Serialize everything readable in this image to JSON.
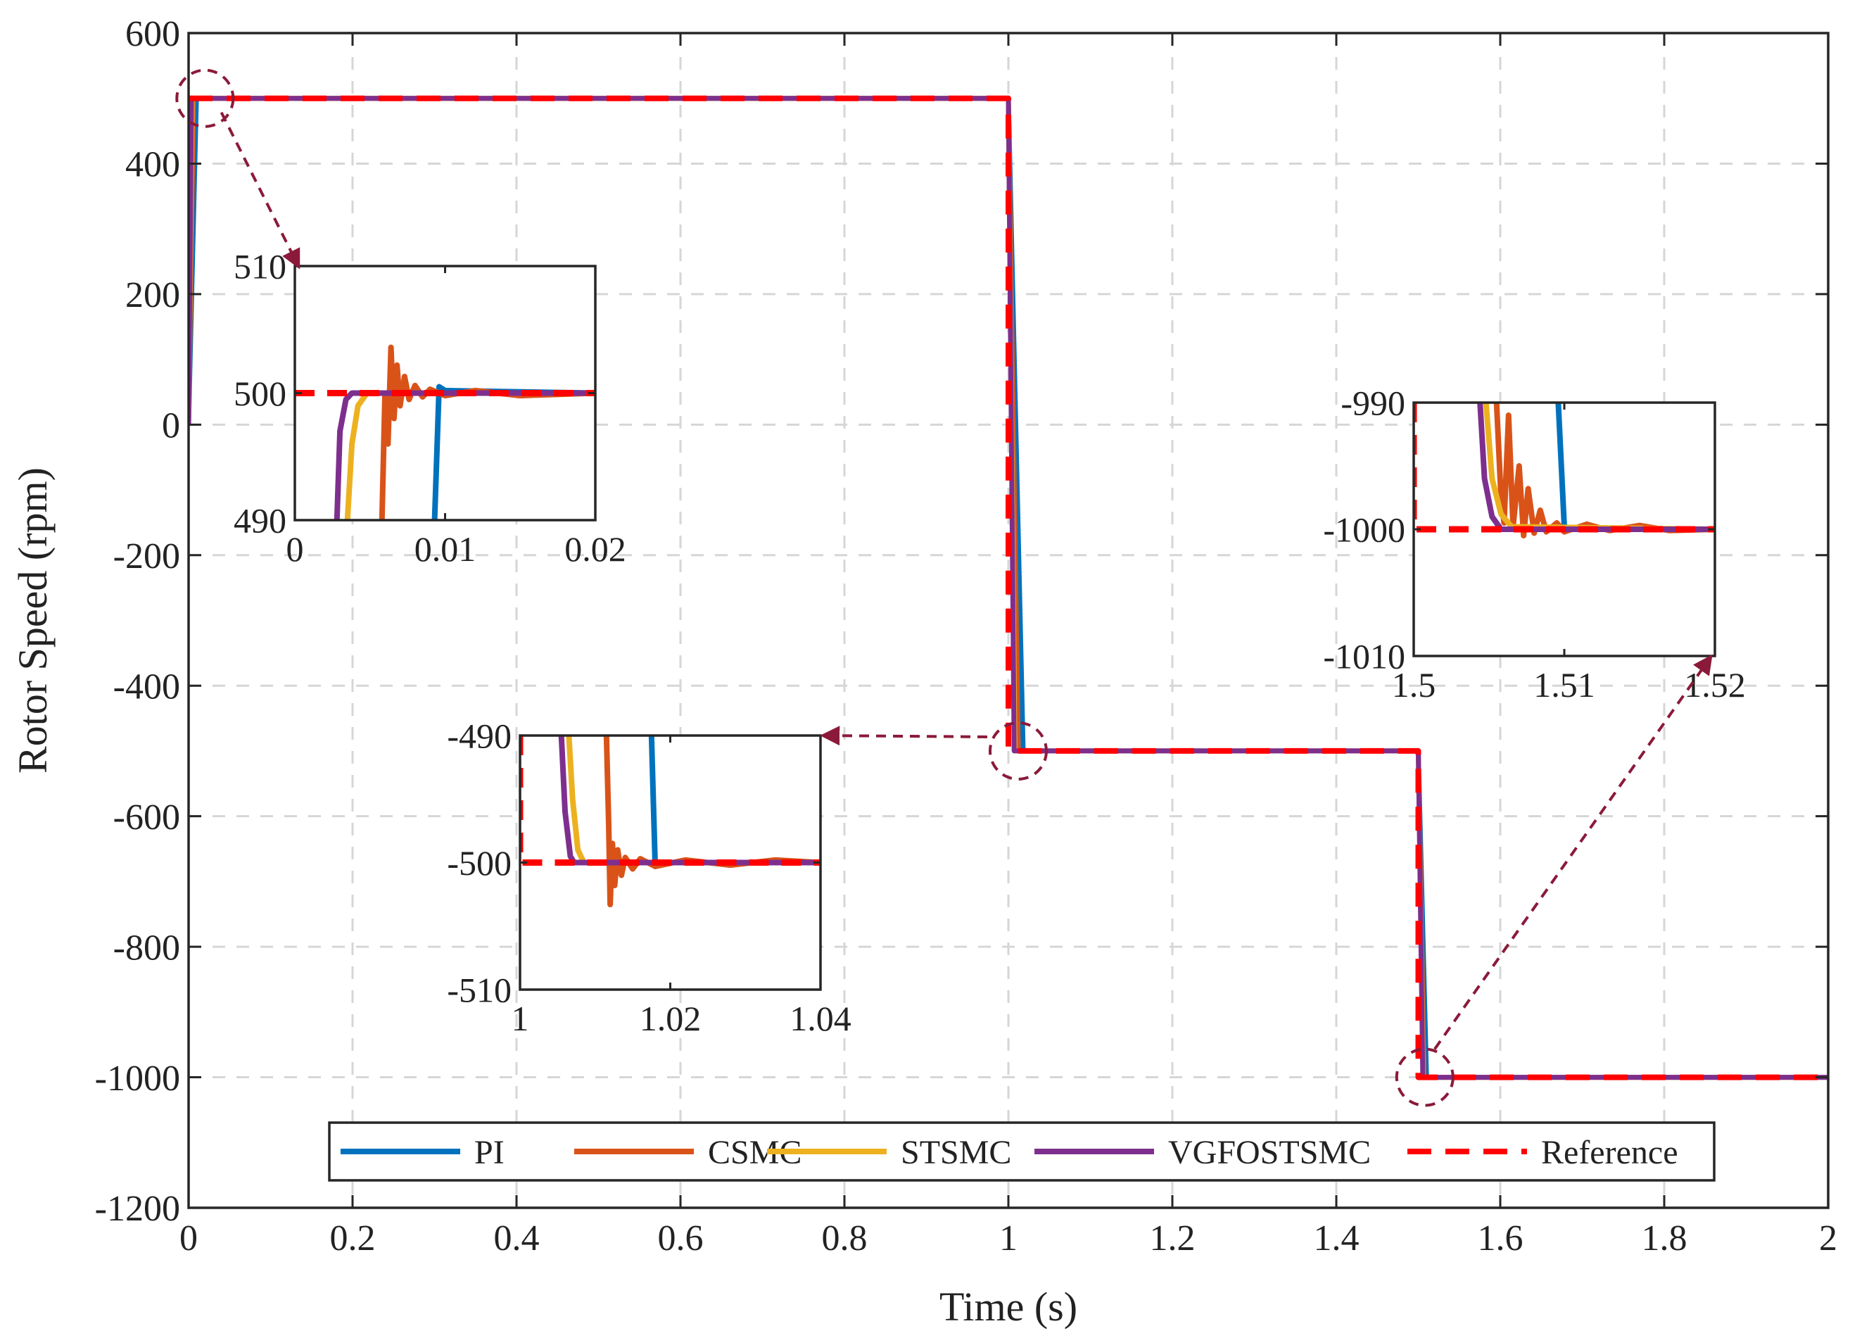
{
  "colors": {
    "PI": "#0072BD",
    "CSMC": "#D95319",
    "STSMC": "#EDB120",
    "VGFOSTSMC": "#7E2F8E",
    "Reference": "#FF0000",
    "annotation": "#8B1A3A"
  },
  "chart_data": [
    {
      "id": "main",
      "type": "line",
      "title": "",
      "xlabel": "Time (s)",
      "ylabel": "Rotor Speed (rpm)",
      "xlim": [
        0,
        2
      ],
      "ylim": [
        -1200,
        600
      ],
      "xticks": [
        0,
        0.2,
        0.4,
        0.6,
        0.8,
        1,
        1.2,
        1.4,
        1.6,
        1.8,
        2
      ],
      "xtick_labels": [
        "0",
        "0.2",
        "0.4",
        "0.6",
        "0.8",
        "1",
        "1.2",
        "1.4",
        "1.6",
        "1.8",
        "2"
      ],
      "yticks": [
        600,
        400,
        200,
        0,
        -200,
        -400,
        -600,
        -800,
        -1000,
        -1200
      ],
      "ytick_labels": [
        "600",
        "400",
        "200",
        "0",
        "-200",
        "-400",
        "-600",
        "-800",
        "-1000",
        "-1200"
      ],
      "grid": true,
      "legend": {
        "position": "bottom-center",
        "orientation": "horizontal"
      },
      "series": [
        {
          "name": "PI",
          "points": [
            [
              0,
              0
            ],
            [
              0.0095,
              500
            ],
            [
              1.0,
              500
            ],
            [
              1.018,
              -500
            ],
            [
              1.5,
              -500
            ],
            [
              1.51,
              -1000
            ],
            [
              2,
              -1000
            ]
          ]
        },
        {
          "name": "CSMC",
          "points": [
            [
              0,
              0
            ],
            [
              0.006,
              500
            ],
            [
              1.0,
              500
            ],
            [
              1.012,
              -500
            ],
            [
              1.5,
              -500
            ],
            [
              1.507,
              -1000
            ],
            [
              2,
              -1000
            ]
          ]
        },
        {
          "name": "STSMC",
          "points": [
            [
              0,
              0
            ],
            [
              0.0045,
              500
            ],
            [
              1.0,
              500
            ],
            [
              1.008,
              -500
            ],
            [
              1.5,
              -500
            ],
            [
              1.506,
              -1000
            ],
            [
              2,
              -1000
            ]
          ]
        },
        {
          "name": "VGFOSTSMC",
          "points": [
            [
              0,
              0
            ],
            [
              0.0035,
              500
            ],
            [
              1.0,
              500
            ],
            [
              1.007,
              -500
            ],
            [
              1.5,
              -500
            ],
            [
              1.5055,
              -1000
            ],
            [
              2,
              -1000
            ]
          ]
        },
        {
          "name": "Reference",
          "style": "dashed",
          "points": [
            [
              0,
              500
            ],
            [
              1.0,
              500
            ],
            [
              1.0,
              -500
            ],
            [
              1.5,
              -500
            ],
            [
              1.5,
              -1000
            ],
            [
              2,
              -1000
            ]
          ]
        }
      ]
    },
    {
      "id": "inset1",
      "type": "line",
      "xlim": [
        0,
        0.02
      ],
      "ylim": [
        490,
        510
      ],
      "xticks": [
        0,
        0.01,
        0.02
      ],
      "xtick_labels": [
        "0",
        "0.01",
        "0.02"
      ],
      "yticks": [
        510,
        500,
        490
      ],
      "ytick_labels": [
        "510",
        "500",
        "490"
      ],
      "series": [
        {
          "name": "PI",
          "points": [
            [
              0.0093,
              490
            ],
            [
              0.0096,
              500.5
            ],
            [
              0.01,
              500.2
            ],
            [
              0.02,
              500
            ]
          ]
        },
        {
          "name": "CSMC",
          "points": [
            [
              0.0058,
              490
            ],
            [
              0.006,
              500
            ],
            [
              0.0062,
              496
            ],
            [
              0.0064,
              503.6
            ],
            [
              0.0066,
              498
            ],
            [
              0.0068,
              502.2
            ],
            [
              0.007,
              499
            ],
            [
              0.0073,
              501.3
            ],
            [
              0.0076,
              499.5
            ],
            [
              0.008,
              500.6
            ],
            [
              0.0085,
              499.7
            ],
            [
              0.009,
              500.3
            ],
            [
              0.01,
              499.8
            ],
            [
              0.012,
              500.2
            ],
            [
              0.015,
              499.8
            ],
            [
              0.02,
              500
            ]
          ]
        },
        {
          "name": "STSMC",
          "points": [
            [
              0.0035,
              490
            ],
            [
              0.0038,
              496
            ],
            [
              0.0042,
              499
            ],
            [
              0.0048,
              500
            ],
            [
              0.02,
              500
            ]
          ]
        },
        {
          "name": "VGFOSTSMC",
          "points": [
            [
              0.0028,
              490
            ],
            [
              0.003,
              497
            ],
            [
              0.0034,
              499.5
            ],
            [
              0.0038,
              500
            ],
            [
              0.02,
              500
            ]
          ]
        },
        {
          "name": "Reference",
          "style": "dashed",
          "points": [
            [
              0,
              500
            ],
            [
              0.02,
              500
            ]
          ]
        }
      ]
    },
    {
      "id": "inset2",
      "type": "line",
      "xlim": [
        1,
        1.04
      ],
      "ylim": [
        -510,
        -490
      ],
      "xticks": [
        1,
        1.02,
        1.04
      ],
      "xtick_labels": [
        "1",
        "1.02",
        "1.04"
      ],
      "yticks": [
        -490,
        -500,
        -510
      ],
      "ytick_labels": [
        "-490",
        "-500",
        "-510"
      ],
      "series": [
        {
          "name": "PI",
          "points": [
            [
              1.0175,
              -490
            ],
            [
              1.018,
              -500.3
            ],
            [
              1.019,
              -500
            ],
            [
              1.04,
              -500
            ]
          ]
        },
        {
          "name": "CSMC",
          "points": [
            [
              1.0115,
              -490
            ],
            [
              1.0118,
              -497
            ],
            [
              1.012,
              -503.3
            ],
            [
              1.0123,
              -498.5
            ],
            [
              1.0126,
              -501.8
            ],
            [
              1.013,
              -499
            ],
            [
              1.0135,
              -501
            ],
            [
              1.014,
              -499.6
            ],
            [
              1.015,
              -500.5
            ],
            [
              1.016,
              -499.7
            ],
            [
              1.018,
              -500.3
            ],
            [
              1.022,
              -499.8
            ],
            [
              1.028,
              -500.2
            ],
            [
              1.034,
              -499.8
            ],
            [
              1.04,
              -500
            ]
          ]
        },
        {
          "name": "STSMC",
          "points": [
            [
              1.0065,
              -490
            ],
            [
              1.007,
              -495
            ],
            [
              1.0077,
              -499
            ],
            [
              1.0085,
              -500
            ],
            [
              1.04,
              -500
            ]
          ]
        },
        {
          "name": "VGFOSTSMC",
          "points": [
            [
              1.0055,
              -490
            ],
            [
              1.006,
              -496
            ],
            [
              1.0067,
              -499.5
            ],
            [
              1.0072,
              -500
            ],
            [
              1.04,
              -500
            ]
          ]
        },
        {
          "name": "Reference",
          "style": "dashed",
          "points": [
            [
              1.0,
              -490
            ],
            [
              1.0,
              -500
            ],
            [
              1.04,
              -500
            ]
          ]
        }
      ]
    },
    {
      "id": "inset3",
      "type": "line",
      "xlim": [
        1.5,
        1.52
      ],
      "ylim": [
        -1010,
        -990
      ],
      "xticks": [
        1.5,
        1.51,
        1.52
      ],
      "xtick_labels": [
        "1.5",
        "1.51",
        "1.52"
      ],
      "yticks": [
        -990,
        -1000,
        -1010
      ],
      "ytick_labels": [
        "-990",
        "-1000",
        "-1010"
      ],
      "series": [
        {
          "name": "PI",
          "points": [
            [
              1.5096,
              -990
            ],
            [
              1.51,
              -999.8
            ],
            [
              1.5105,
              -1000
            ],
            [
              1.52,
              -1000
            ]
          ]
        },
        {
          "name": "CSMC",
          "points": [
            [
              1.5055,
              -990
            ],
            [
              1.5058,
              -997.5
            ],
            [
              1.506,
              -999.5
            ],
            [
              1.5063,
              -991
            ],
            [
              1.5066,
              -999.8
            ],
            [
              1.507,
              -995
            ],
            [
              1.5073,
              -1000.5
            ],
            [
              1.5076,
              -996.8
            ],
            [
              1.508,
              -1000.3
            ],
            [
              1.5084,
              -998.5
            ],
            [
              1.5088,
              -1000.2
            ],
            [
              1.5095,
              -999.5
            ],
            [
              1.51,
              -1000.2
            ],
            [
              1.5115,
              -999.6
            ],
            [
              1.513,
              -1000.1
            ],
            [
              1.515,
              -999.7
            ],
            [
              1.517,
              -1000.1
            ],
            [
              1.52,
              -1000
            ]
          ]
        },
        {
          "name": "STSMC",
          "points": [
            [
              1.5048,
              -990
            ],
            [
              1.5052,
              -996
            ],
            [
              1.5058,
              -998.8
            ],
            [
              1.5065,
              -999.8
            ],
            [
              1.52,
              -1000
            ]
          ]
        },
        {
          "name": "VGFOSTSMC",
          "points": [
            [
              1.5044,
              -990
            ],
            [
              1.5047,
              -996
            ],
            [
              1.5052,
              -999
            ],
            [
              1.5058,
              -1000
            ],
            [
              1.52,
              -1000
            ]
          ]
        },
        {
          "name": "Reference",
          "style": "dashed",
          "points": [
            [
              1.5,
              -990
            ],
            [
              1.5,
              -1000
            ],
            [
              1.52,
              -1000
            ]
          ]
        }
      ]
    }
  ]
}
